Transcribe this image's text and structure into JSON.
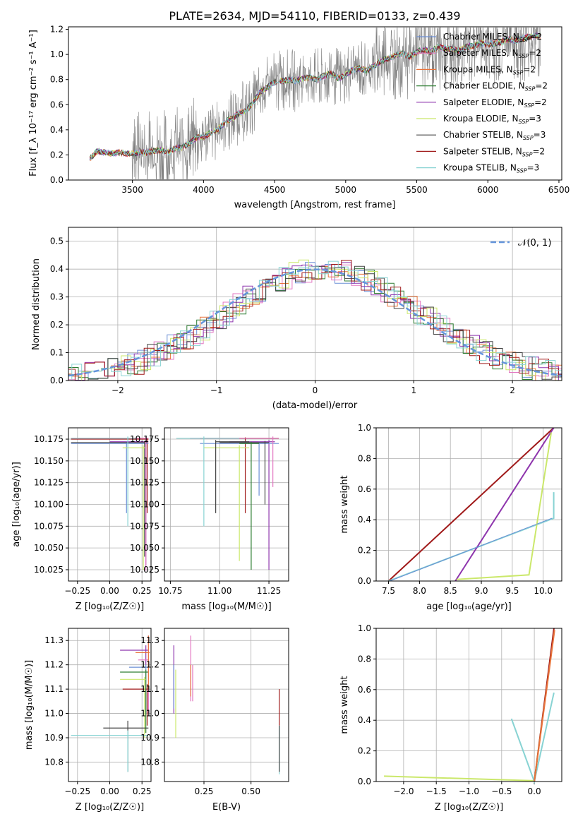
{
  "figure_title": "PLATE=2634, MJD=54110, FIBERID=0133, z=0.439",
  "colors": {
    "chabrier_miles": "#6b8fd6",
    "salpeter_miles": "#e377c2",
    "kroupa_miles": "#e8743b",
    "chabrier_elodie": "#2e7d32",
    "salpeter_elodie": "#8e35ad",
    "kroupa_elodie": "#cbe86b",
    "chabrier_stelib": "#444444",
    "salpeter_stelib": "#a01a1a",
    "kroupa_stelib": "#88d3d3",
    "data": "#808080",
    "gaussian": "#6495dc"
  },
  "chart_data": [
    {
      "id": "spectrum",
      "type": "line",
      "xlabel": "wavelength [Angstrom, rest frame]",
      "ylabel": "Flux [f_λ 10⁻¹⁷ erg cm⁻² s⁻¹ A⁻¹]",
      "xlim": [
        3050,
        6520
      ],
      "ylim": [
        0,
        1.22
      ],
      "xticks": [
        "3500",
        "4000",
        "4500",
        "5000",
        "5500",
        "6000",
        "6500"
      ],
      "yticks": [
        "0.0",
        "0.2",
        "0.4",
        "0.6",
        "0.8",
        "1.0",
        "1.2"
      ],
      "grid": false,
      "legend_position": "top-right",
      "legend": [
        {
          "label": "Chabrier MILES, N",
          "sub": "SSP",
          "suffix": "=2"
        },
        {
          "label": "Salpeter MILES, N",
          "sub": "SSP",
          "suffix": "=2"
        },
        {
          "label": "Kroupa MILES, N",
          "sub": "SSP",
          "suffix": "=2"
        },
        {
          "label": "Chabrier ELODIE, N",
          "sub": "SSP",
          "suffix": "=2"
        },
        {
          "label": "Salpeter ELODIE, N",
          "sub": "SSP",
          "suffix": "=2"
        },
        {
          "label": "Kroupa ELODIE, N",
          "sub": "SSP",
          "suffix": "=3"
        },
        {
          "label": "Chabrier STELIB, N",
          "sub": "SSP",
          "suffix": "=3"
        },
        {
          "label": "Salpeter STELIB, N",
          "sub": "SSP",
          "suffix": "=2"
        },
        {
          "label": "Kroupa STELIB, N",
          "sub": "SSP",
          "suffix": "=3"
        }
      ],
      "model_x": [
        3200,
        3250,
        3300,
        3350,
        3400,
        3450,
        3500,
        3550,
        3600,
        3650,
        3700,
        3750,
        3800,
        3850,
        3900,
        3950,
        4000,
        4050,
        4100,
        4150,
        4200,
        4250,
        4300,
        4350,
        4400,
        4450,
        4500,
        4550,
        4600,
        4650,
        4700,
        4750,
        4800,
        4850,
        4900,
        4950,
        5000,
        5050,
        5100,
        5150,
        5200,
        5250,
        5300,
        5350,
        5400,
        5450,
        5500,
        5550,
        5600,
        5650,
        5700,
        5750,
        5800,
        5850,
        5900,
        5950,
        6000,
        6050,
        6100,
        6150,
        6200,
        6250,
        6300,
        6350
      ],
      "model_y": [
        0.17,
        0.23,
        0.22,
        0.21,
        0.22,
        0.21,
        0.21,
        0.22,
        0.22,
        0.23,
        0.24,
        0.22,
        0.25,
        0.26,
        0.29,
        0.34,
        0.34,
        0.38,
        0.4,
        0.46,
        0.49,
        0.53,
        0.55,
        0.62,
        0.7,
        0.74,
        0.78,
        0.79,
        0.8,
        0.79,
        0.81,
        0.82,
        0.8,
        0.83,
        0.85,
        0.81,
        0.84,
        0.88,
        0.89,
        0.87,
        0.91,
        0.95,
        0.97,
        0.99,
        1.01,
        0.98,
        1.02,
        1.04,
        1.02,
        1.06,
        1.05,
        1.04,
        1.03,
        1.06,
        1.07,
        1.09,
        1.08,
        1.09,
        1.1,
        1.12,
        1.11,
        1.13,
        1.14,
        1.15
      ]
    },
    {
      "id": "residuals",
      "type": "step",
      "xlabel": "(data-model)/error",
      "ylabel": "Normed distribution",
      "xlim": [
        -2.5,
        2.5
      ],
      "ylim": [
        0,
        0.55
      ],
      "xticks": [
        "−2",
        "−1",
        "0",
        "1",
        "2"
      ],
      "yticks": [
        "0.0",
        "0.1",
        "0.2",
        "0.3",
        "0.4",
        "0.5"
      ],
      "grid": true,
      "legend_label": "𝒩(0, 1)",
      "legend_position": "top-right"
    },
    {
      "id": "age_vs_Z",
      "type": "errorbar",
      "xlabel": "Z [log₁₀(Z/Z☉)]",
      "ylabel": "age  [log₁₀(age/yr)]",
      "xlim": [
        -0.32,
        0.32
      ],
      "ylim": [
        10.012,
        10.188
      ],
      "xticks": [
        "−0.25",
        "0.00",
        "0.25"
      ],
      "yticks": [
        "10.025",
        "10.050",
        "10.075",
        "10.100",
        "10.125",
        "10.150",
        "10.175"
      ],
      "grid": true
    },
    {
      "id": "age_vs_mass",
      "type": "errorbar",
      "xlabel": "mass [log₁₀(M/M☉)]",
      "xlim": [
        10.72,
        11.35
      ],
      "ylim": [
        10.012,
        10.188
      ],
      "xticks": [
        "10.75",
        "11.00",
        "11.25"
      ],
      "yticks": [
        "10.025",
        "10.050",
        "10.075",
        "10.100",
        "10.125",
        "10.150",
        "10.175"
      ],
      "grid": true
    },
    {
      "id": "massweight_vs_age",
      "type": "line",
      "xlabel": "age  [log₁₀(age/yr)]",
      "ylabel": "mass weight",
      "xlim": [
        7.3,
        10.3
      ],
      "ylim": [
        0,
        1
      ],
      "xticks": [
        "7.5",
        "8.0",
        "8.5",
        "9.0",
        "9.5",
        "10.0"
      ],
      "yticks": [
        "0.0",
        "0.2",
        "0.4",
        "0.6",
        "0.8",
        "1.0"
      ],
      "grid": true
    },
    {
      "id": "mass_vs_Z",
      "type": "errorbar",
      "xlabel": "Z [log₁₀(Z/Z☉)]",
      "ylabel": "mass [log₁₀(M/M☉)]",
      "xlim": [
        -0.32,
        0.32
      ],
      "ylim": [
        10.72,
        11.35
      ],
      "xticks": [
        "−0.25",
        "0.00",
        "0.25"
      ],
      "yticks": [
        "10.8",
        "10.9",
        "11.0",
        "11.1",
        "11.2",
        "11.3"
      ],
      "grid": true
    },
    {
      "id": "mass_vs_ebv",
      "type": "errorbar",
      "xlabel": "E(B-V)",
      "xlim": [
        0.04,
        0.7
      ],
      "ylim": [
        10.72,
        11.35
      ],
      "xticks": [
        "0.25",
        "0.50"
      ],
      "yticks": [
        "10.8",
        "10.9",
        "11.0",
        "11.1",
        "11.2",
        "11.3"
      ],
      "grid": true
    },
    {
      "id": "massweight_vs_Z",
      "type": "line",
      "xlabel": "Z [log₁₀(Z/Z☉)]",
      "ylabel": "mass weight",
      "xlim": [
        -2.42,
        0.42
      ],
      "ylim": [
        0,
        1
      ],
      "xticks": [
        "−2.0",
        "−1.5",
        "−1.0",
        "−0.5",
        "0.0"
      ],
      "yticks": [
        "0.0",
        "0.2",
        "0.4",
        "0.6",
        "0.8",
        "1.0"
      ],
      "grid": true
    }
  ]
}
